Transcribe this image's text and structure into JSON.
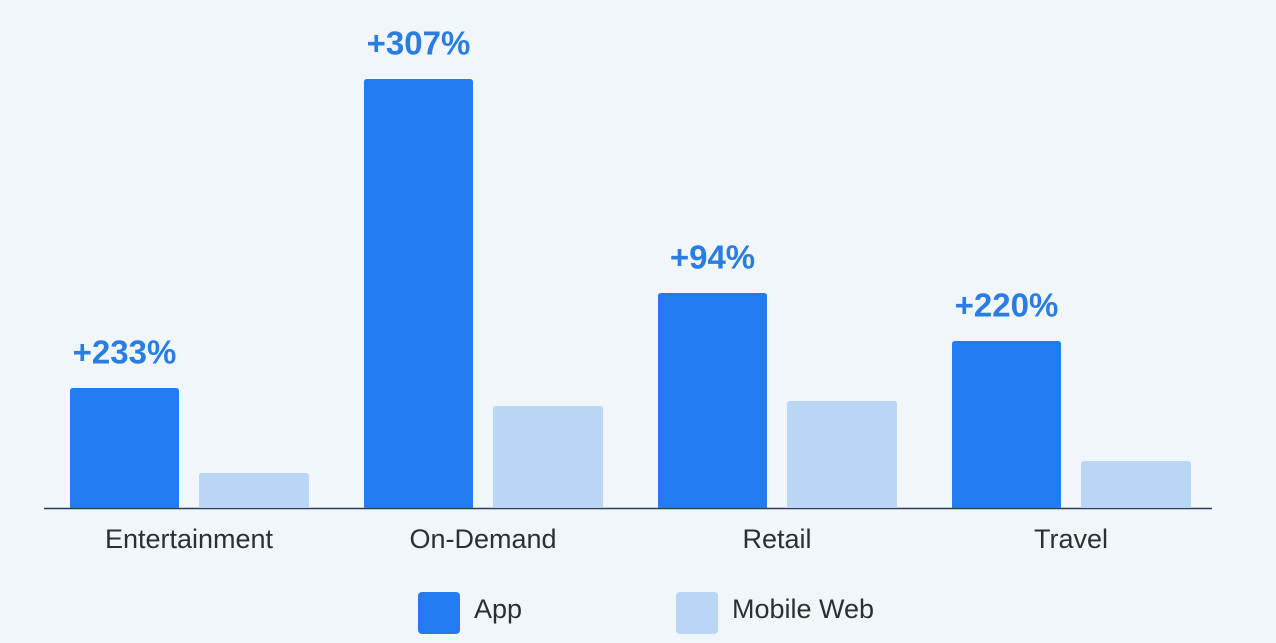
{
  "chart_data": {
    "type": "bar",
    "categories": [
      "Entertainment",
      "On-Demand",
      "Retail",
      "Travel"
    ],
    "series": [
      {
        "name": "App",
        "color": "#247af0",
        "values": [
          120,
          429,
          215,
          167
        ],
        "annotations": [
          "+233%",
          "+307%",
          "+94%",
          "+220%"
        ]
      },
      {
        "name": "Mobile Web",
        "color": "#b9d6f5",
        "values": [
          35,
          102,
          107,
          47
        ]
      }
    ],
    "ylim": [
      0,
      440
    ]
  }
}
